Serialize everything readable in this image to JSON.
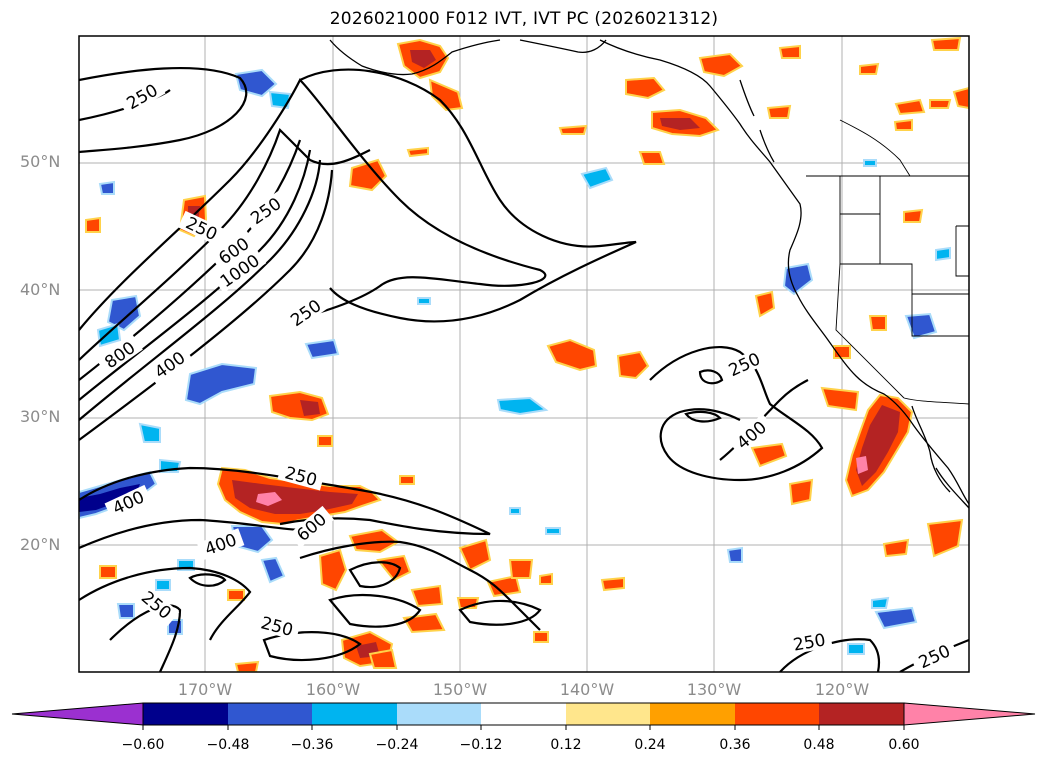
{
  "title": "2026021000 F012 IVT, IVT PC (2026021312)",
  "lat_labels": [
    "50°N",
    "40°N",
    "30°N",
    "20°N"
  ],
  "lon_labels": [
    "170°W",
    "160°W",
    "150°W",
    "140°W",
    "130°W",
    "120°W"
  ],
  "contour_labels": [
    "250",
    "250",
    "250",
    "250",
    "600",
    "1000",
    "250",
    "800",
    "400",
    "250",
    "400",
    "250",
    "600",
    "400",
    "400",
    "250",
    "250",
    "250",
    "250"
  ],
  "colorbar": {
    "ticks": [
      "−0.60",
      "−0.48",
      "−0.36",
      "−0.24",
      "−0.12",
      "0.12",
      "0.24",
      "0.36",
      "0.48",
      "0.60"
    ],
    "colors": [
      "#9b30d0",
      "#00008c",
      "#3057d0",
      "#00b4f0",
      "#aadcfa",
      "#ffffff",
      "#ffe68c",
      "#ffa000",
      "#ff4600",
      "#b42323",
      "#ff82a8"
    ]
  },
  "palette": {
    "outline": "#ffd24a",
    "orange": "#ff9600",
    "red_orange": "#ff4600",
    "dark_red": "#b42323",
    "pink": "#ff82a8",
    "light_blue": "#aadcfa",
    "cyan": "#00b4f0",
    "blue": "#3057d0",
    "navy": "#00008c"
  }
}
